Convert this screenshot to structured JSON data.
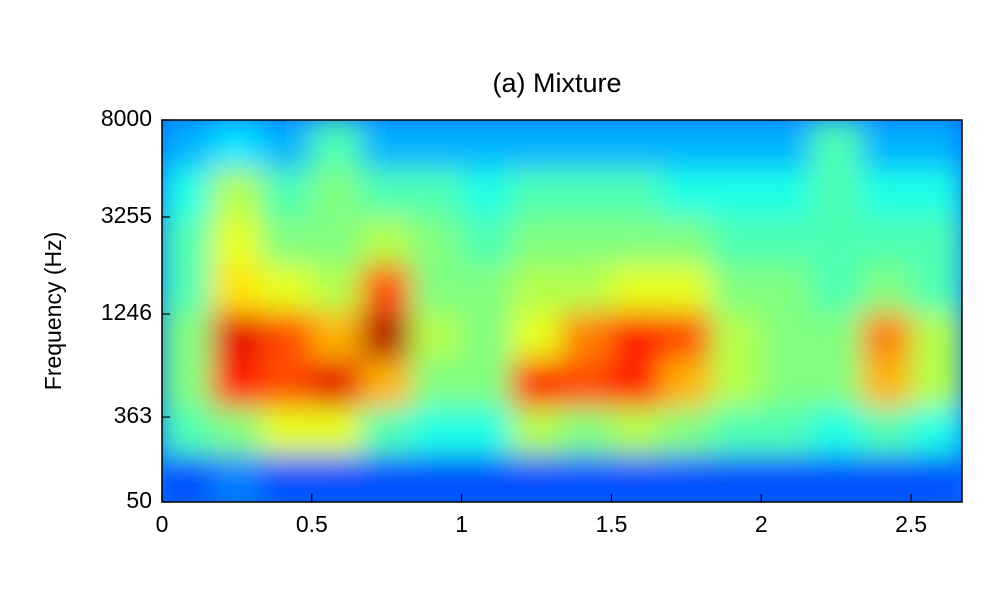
{
  "chart_data": {
    "type": "spectrogram",
    "title": "(a) Mixture",
    "ylabel": "Frequency (Hz)",
    "xlim": [
      0,
      2.67
    ],
    "xticks": [
      0,
      0.5,
      1,
      1.5,
      2,
      2.5
    ],
    "ylim": [
      50,
      8000
    ],
    "yticks": [
      50,
      363,
      1246,
      3255,
      8000
    ],
    "yscale": "erb",
    "colormap": "jet",
    "zlim": [
      0,
      1
    ],
    "z": [
      [
        0.2,
        0.25,
        0.2,
        0.2,
        0.2,
        0.2,
        0.2,
        0.2,
        0.2,
        0.2,
        0.2,
        0.2,
        0.2,
        0.2,
        0.2,
        0.2
      ],
      [
        0.45,
        0.5,
        0.6,
        0.6,
        0.45,
        0.4,
        0.4,
        0.55,
        0.5,
        0.55,
        0.5,
        0.45,
        0.45,
        0.4,
        0.45,
        0.4
      ],
      [
        0.5,
        0.85,
        0.8,
        0.9,
        0.7,
        0.5,
        0.5,
        0.85,
        0.8,
        0.85,
        0.7,
        0.55,
        0.5,
        0.5,
        0.7,
        0.55
      ],
      [
        0.5,
        0.9,
        0.8,
        0.7,
        0.95,
        0.55,
        0.5,
        0.6,
        0.75,
        0.85,
        0.8,
        0.55,
        0.5,
        0.5,
        0.75,
        0.55
      ],
      [
        0.45,
        0.65,
        0.6,
        0.55,
        0.8,
        0.5,
        0.5,
        0.55,
        0.55,
        0.6,
        0.6,
        0.5,
        0.5,
        0.45,
        0.5,
        0.45
      ],
      [
        0.45,
        0.6,
        0.5,
        0.5,
        0.55,
        0.5,
        0.45,
        0.5,
        0.5,
        0.5,
        0.5,
        0.45,
        0.45,
        0.45,
        0.45,
        0.45
      ],
      [
        0.4,
        0.55,
        0.45,
        0.5,
        0.45,
        0.45,
        0.4,
        0.45,
        0.45,
        0.45,
        0.4,
        0.4,
        0.4,
        0.45,
        0.4,
        0.4
      ],
      [
        0.3,
        0.35,
        0.3,
        0.45,
        0.3,
        0.3,
        0.3,
        0.3,
        0.3,
        0.3,
        0.3,
        0.3,
        0.3,
        0.45,
        0.3,
        0.3
      ]
    ]
  }
}
